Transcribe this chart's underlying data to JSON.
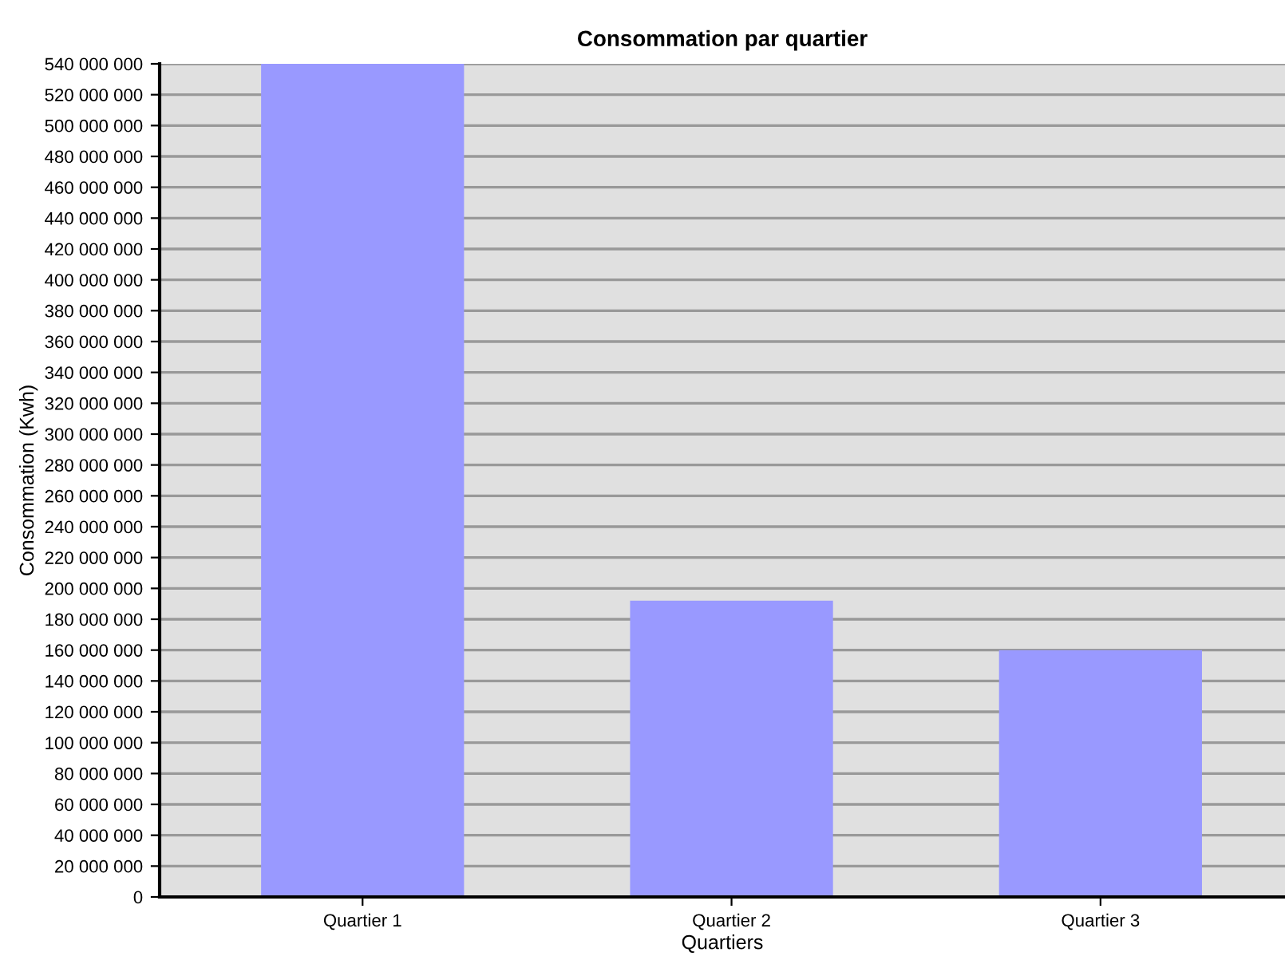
{
  "chart_data": {
    "type": "bar",
    "title": "Consommation par quartier",
    "xlabel": "Quartiers",
    "ylabel": "Consommation (Kwh)",
    "categories": [
      "Quartier 1",
      "Quartier 2",
      "Quartier 3"
    ],
    "values": [
      540000000,
      192000000,
      160000000
    ],
    "color": "#9999ff",
    "ylim": [
      0,
      540000000
    ],
    "yticks": [
      {
        "value": 0,
        "label": "0"
      },
      {
        "value": 20000000,
        "label": "20 000 000"
      },
      {
        "value": 40000000,
        "label": "40 000 000"
      },
      {
        "value": 60000000,
        "label": "60 000 000"
      },
      {
        "value": 80000000,
        "label": "80 000 000"
      },
      {
        "value": 100000000,
        "label": "100 000 000"
      },
      {
        "value": 120000000,
        "label": "120 000 000"
      },
      {
        "value": 140000000,
        "label": "140 000 000"
      },
      {
        "value": 160000000,
        "label": "160 000 000"
      },
      {
        "value": 180000000,
        "label": "180 000 000"
      },
      {
        "value": 200000000,
        "label": "200 000 000"
      },
      {
        "value": 220000000,
        "label": "220 000 000"
      },
      {
        "value": 240000000,
        "label": "240 000 000"
      },
      {
        "value": 260000000,
        "label": "260 000 000"
      },
      {
        "value": 280000000,
        "label": "280 000 000"
      },
      {
        "value": 300000000,
        "label": "300 000 000"
      },
      {
        "value": 320000000,
        "label": "320 000 000"
      },
      {
        "value": 340000000,
        "label": "340 000 000"
      },
      {
        "value": 360000000,
        "label": "360 000 000"
      },
      {
        "value": 380000000,
        "label": "380 000 000"
      },
      {
        "value": 400000000,
        "label": "400 000 000"
      },
      {
        "value": 420000000,
        "label": "420 000 000"
      },
      {
        "value": 440000000,
        "label": "440 000 000"
      },
      {
        "value": 460000000,
        "label": "460 000 000"
      },
      {
        "value": 480000000,
        "label": "480 000 000"
      },
      {
        "value": 500000000,
        "label": "500 000 000"
      },
      {
        "value": 520000000,
        "label": "520 000 000"
      },
      {
        "value": 540000000,
        "label": "540 000 000"
      }
    ],
    "grid": "y"
  }
}
